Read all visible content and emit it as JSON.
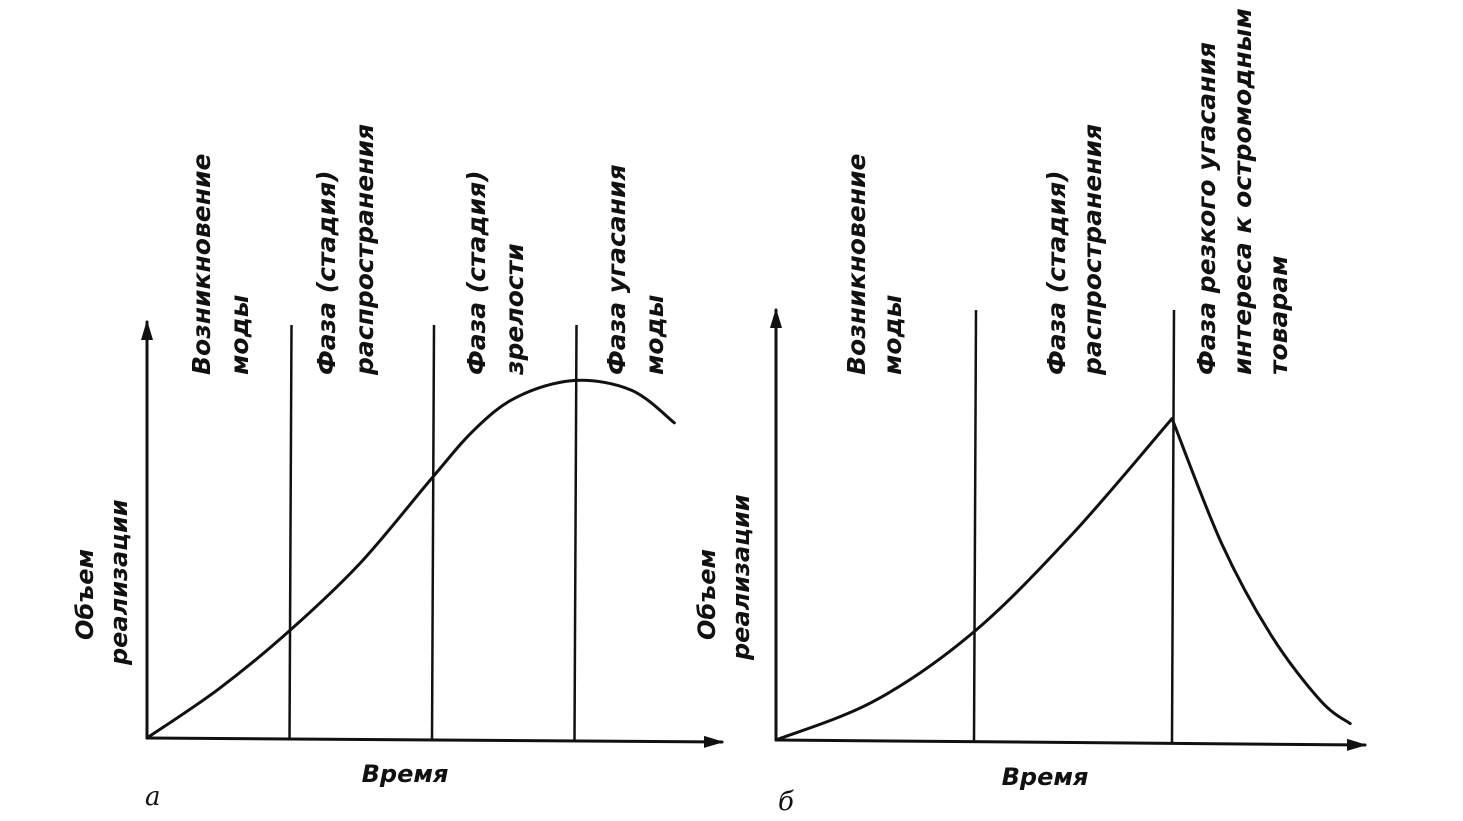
{
  "chart_data": [
    {
      "type": "line",
      "panel_label": "а",
      "xlabel": "Время",
      "ylabel_lines": [
        "Объем",
        "реализации"
      ],
      "phases": [
        {
          "lines": [
            "Возникновение",
            "моды"
          ]
        },
        {
          "lines": [
            "Фаза (стадия)",
            "распространения"
          ]
        },
        {
          "lines": [
            "Фаза (стадия)",
            "зрелости"
          ]
        },
        {
          "lines": [
            "Фаза угасания",
            "моды"
          ]
        }
      ],
      "boundaries": [
        1,
        2,
        3
      ],
      "x": [
        0,
        0.5,
        1,
        1.5,
        2,
        2.3,
        2.6,
        3,
        3.4,
        3.7
      ],
      "y": [
        0,
        0.15,
        0.33,
        0.54,
        0.8,
        0.95,
        1.05,
        1.1,
        1.07,
        0.97
      ],
      "xlim": [
        0,
        4
      ],
      "ylim": [
        0,
        1.3
      ],
      "grid": false
    },
    {
      "type": "line",
      "panel_label": "б",
      "xlabel": "Время",
      "ylabel_lines": [
        "Объем",
        "реализации"
      ],
      "phases": [
        {
          "lines": [
            "Возникновение",
            "моды"
          ]
        },
        {
          "lines": [
            "Фаза (стадия)",
            "распространения"
          ]
        },
        {
          "lines": [
            "Фаза резкого угасания",
            "интереса к остромодным",
            "товарам"
          ]
        }
      ],
      "boundaries": [
        1,
        2
      ],
      "x": [
        0,
        0.5,
        1,
        1.5,
        2,
        2.25,
        2.5,
        2.75,
        2.9
      ],
      "y": [
        0,
        0.12,
        0.33,
        0.63,
        0.98,
        0.6,
        0.32,
        0.12,
        0.05
      ],
      "xlim": [
        0,
        3
      ],
      "ylim": [
        0,
        1.3
      ],
      "grid": false
    }
  ]
}
